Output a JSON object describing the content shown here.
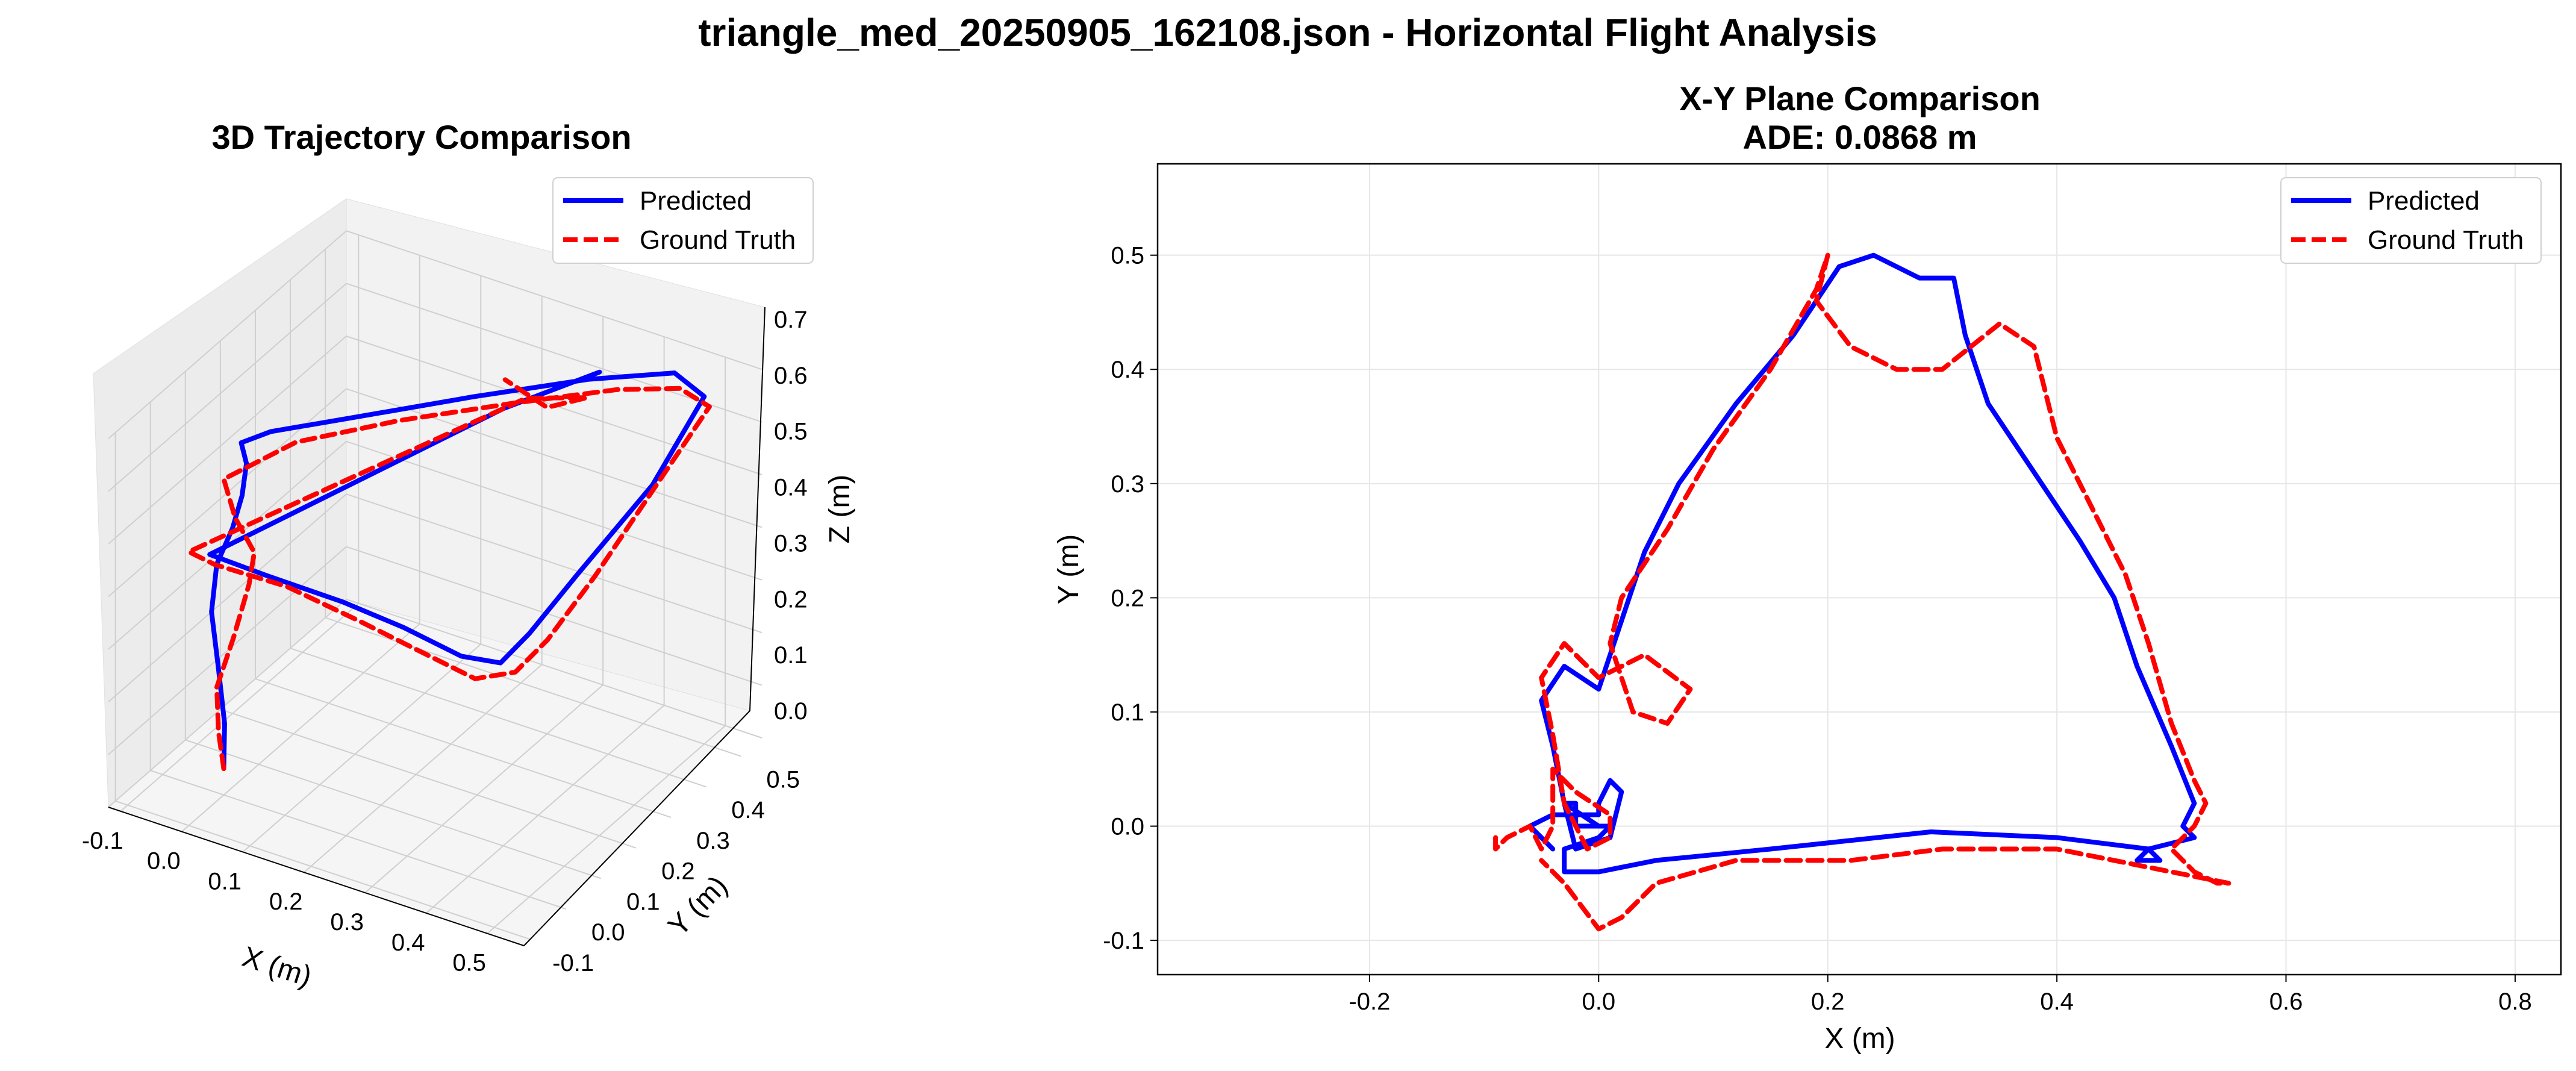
{
  "figure_title": "triangle_med_20250905_162108.json - Horizontal Flight Analysis",
  "colors": {
    "predicted": "#0000ff",
    "ground_truth": "#ff0000",
    "grid": "#e6e6e6",
    "pane_floor": "#f2f2f2",
    "pane_wall": "#ebebeb"
  },
  "chart_data": [
    {
      "type": "line3d",
      "title": "3D Trajectory Comparison",
      "xlabel": "X (m)",
      "ylabel": "Y (m)",
      "zlabel": "Z (m)",
      "xlim": [
        -0.12,
        0.56
      ],
      "ylim": [
        -0.12,
        0.56
      ],
      "zlim": [
        0.0,
        0.7
      ],
      "x_ticks": [
        "-0.1",
        "0.0",
        "0.1",
        "0.2",
        "0.3",
        "0.4",
        "0.5"
      ],
      "y_ticks": [
        "-0.1",
        "0.0",
        "0.1",
        "0.2",
        "0.3",
        "0.4",
        "0.5"
      ],
      "z_ticks": [
        "0.0",
        "0.1",
        "0.2",
        "0.3",
        "0.4",
        "0.5",
        "0.6",
        "0.7"
      ],
      "legend": {
        "position": "top-right",
        "entries": [
          "Predicted",
          "Ground Truth"
        ]
      },
      "grid": true,
      "series": [
        {
          "name": "Predicted",
          "style": "solid",
          "x": [
            0.0,
            -0.01,
            -0.02,
            -0.02,
            0.0,
            0.02,
            0.03,
            0.02,
            0.0,
            0.02,
            0.1,
            0.22,
            0.34,
            0.44,
            0.5,
            0.53,
            0.52,
            0.5,
            0.47,
            0.4,
            0.3,
            0.2,
            0.08,
            0.0,
            0.2,
            0.3
          ],
          "y": [
            0.0,
            0.02,
            0.02,
            0.0,
            -0.02,
            -0.01,
            0.0,
            0.03,
            0.05,
            0.1,
            0.2,
            0.33,
            0.45,
            0.52,
            0.5,
            0.3,
            0.1,
            0.0,
            -0.03,
            -0.02,
            -0.01,
            -0.01,
            -0.02,
            -0.04,
            0.45,
            0.55
          ],
          "z": [
            0.05,
            0.12,
            0.22,
            0.34,
            0.45,
            0.52,
            0.58,
            0.62,
            0.64,
            0.64,
            0.64,
            0.65,
            0.66,
            0.67,
            0.66,
            0.62,
            0.56,
            0.5,
            0.45,
            0.43,
            0.44,
            0.45,
            0.46,
            0.48,
            0.55,
            0.6
          ]
        },
        {
          "name": "Ground Truth",
          "style": "dashed",
          "x": [
            0.0,
            -0.02,
            -0.04,
            -0.03,
            0.0,
            0.03,
            0.05,
            0.03,
            0.0,
            0.05,
            0.15,
            0.27,
            0.38,
            0.46,
            0.52,
            0.54,
            0.55,
            0.53,
            0.5,
            0.44,
            0.34,
            0.24,
            0.12,
            0.02,
            0.0,
            0.22,
            0.32,
            0.3,
            0.22
          ],
          "y": [
            0.0,
            0.02,
            0.05,
            0.08,
            0.05,
            0.02,
            0.0,
            -0.02,
            0.0,
            0.12,
            0.24,
            0.36,
            0.46,
            0.5,
            0.48,
            0.3,
            0.1,
            0.0,
            -0.04,
            -0.05,
            -0.04,
            -0.03,
            -0.03,
            -0.06,
            -0.1,
            0.48,
            0.48,
            0.4,
            0.42
          ],
          "z": [
            0.05,
            0.1,
            0.16,
            0.24,
            0.32,
            0.4,
            0.48,
            0.55,
            0.6,
            0.62,
            0.63,
            0.64,
            0.65,
            0.66,
            0.66,
            0.63,
            0.57,
            0.5,
            0.45,
            0.42,
            0.43,
            0.44,
            0.46,
            0.48,
            0.52,
            0.56,
            0.6,
            0.62,
            0.63
          ]
        }
      ]
    },
    {
      "type": "line",
      "title": "X-Y Plane Comparison",
      "subtitle": "ADE: 0.0868 m",
      "xlabel": "X (m)",
      "ylabel": "Y (m)",
      "xlim": [
        -0.385,
        0.84
      ],
      "ylim": [
        -0.13,
        0.58
      ],
      "x_ticks": [
        -0.2,
        0.0,
        0.2,
        0.4,
        0.6,
        0.8
      ],
      "y_ticks": [
        -0.1,
        0.0,
        0.1,
        0.2,
        0.3,
        0.4,
        0.5
      ],
      "x_tick_labels": [
        "-0.2",
        "0.0",
        "0.2",
        "0.4",
        "0.6",
        "0.8"
      ],
      "y_tick_labels": [
        "-0.1",
        "0.0",
        "0.1",
        "0.2",
        "0.3",
        "0.4",
        "0.5"
      ],
      "legend": {
        "position": "top-right",
        "entries": [
          "Predicted",
          "Ground Truth"
        ]
      },
      "grid": true,
      "series": [
        {
          "name": "Predicted",
          "style": "solid",
          "x": [
            -0.04,
            -0.05,
            -0.06,
            -0.04,
            -0.02,
            0.0,
            0.0,
            0.01,
            0.02,
            0.01,
            -0.02,
            -0.03,
            -0.04,
            -0.05,
            -0.03,
            0.0,
            0.02,
            0.04,
            0.07,
            0.12,
            0.17,
            0.21,
            0.24,
            0.28,
            0.31,
            0.32,
            0.34,
            0.38,
            0.42,
            0.45,
            0.47,
            0.5,
            0.52,
            0.51,
            0.52,
            0.48,
            0.47,
            0.49,
            0.48,
            0.4,
            0.29,
            0.15,
            0.05,
            0.0,
            -0.03,
            -0.03,
            0.0,
            0.01,
            -0.02,
            -0.02,
            -0.02,
            -0.03,
            0.0
          ],
          "y": [
            -0.02,
            -0.01,
            0.0,
            0.01,
            0.01,
            0.01,
            0.02,
            0.04,
            0.03,
            -0.01,
            -0.02,
            0.02,
            0.07,
            0.11,
            0.14,
            0.12,
            0.18,
            0.24,
            0.3,
            0.37,
            0.43,
            0.49,
            0.5,
            0.48,
            0.48,
            0.43,
            0.37,
            0.31,
            0.25,
            0.2,
            0.14,
            0.07,
            0.02,
            0.0,
            -0.01,
            -0.02,
            -0.03,
            -0.03,
            -0.02,
            -0.01,
            -0.005,
            -0.02,
            -0.03,
            -0.04,
            -0.04,
            -0.02,
            -0.01,
            0.0,
            0.0,
            0.0,
            0.02,
            0.02,
            0.0
          ]
        },
        {
          "name": "Ground Truth",
          "style": "dashed",
          "x": [
            -0.09,
            -0.09,
            -0.08,
            -0.06,
            -0.05,
            -0.04,
            -0.04,
            -0.02,
            0.01,
            0.01,
            -0.01,
            -0.03,
            -0.04,
            -0.05,
            -0.03,
            0.0,
            0.04,
            0.08,
            0.06,
            0.03,
            0.01,
            0.02,
            0.06,
            0.1,
            0.15,
            0.19,
            0.2,
            0.19,
            0.22,
            0.26,
            0.3,
            0.35,
            0.38,
            0.4,
            0.43,
            0.46,
            0.48,
            0.5,
            0.52,
            0.53,
            0.52,
            0.5,
            0.52,
            0.54,
            0.55,
            0.5,
            0.4,
            0.3,
            0.22,
            0.12,
            0.05,
            0.02,
            0.0,
            -0.03,
            -0.05
          ],
          "y": [
            -0.01,
            -0.02,
            -0.01,
            0.0,
            -0.02,
            0.0,
            0.05,
            0.03,
            0.01,
            -0.01,
            -0.02,
            0.02,
            0.08,
            0.13,
            0.16,
            0.13,
            0.15,
            0.12,
            0.09,
            0.1,
            0.16,
            0.2,
            0.26,
            0.33,
            0.4,
            0.47,
            0.5,
            0.46,
            0.42,
            0.4,
            0.4,
            0.44,
            0.42,
            0.34,
            0.28,
            0.22,
            0.16,
            0.09,
            0.04,
            0.02,
            0.0,
            -0.02,
            -0.04,
            -0.05,
            -0.05,
            -0.04,
            -0.02,
            -0.02,
            -0.03,
            -0.03,
            -0.05,
            -0.08,
            -0.09,
            -0.05,
            -0.03
          ]
        }
      ]
    }
  ]
}
